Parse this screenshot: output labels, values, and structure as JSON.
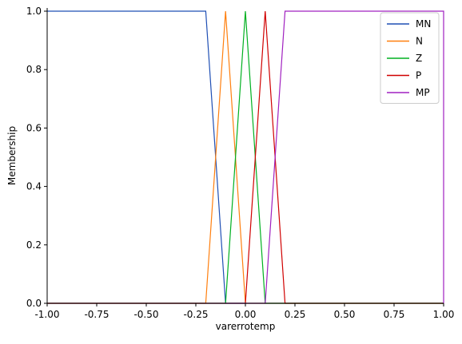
{
  "chart_data": {
    "type": "line",
    "title": "",
    "xlabel": "varerrotemp",
    "ylabel": "Membership",
    "xlim": [
      -1.0,
      1.0
    ],
    "ylim": [
      0.0,
      1.0
    ],
    "xticks": [
      "-1.00",
      "-0.75",
      "-0.50",
      "-0.25",
      "0.00",
      "0.25",
      "0.50",
      "0.75",
      "1.00"
    ],
    "yticks": [
      "0.0",
      "0.2",
      "0.4",
      "0.6",
      "0.8",
      "1.0"
    ],
    "grid": false,
    "legend_position": "top-right",
    "series": [
      {
        "name": "MN",
        "color": "#1f4fb4",
        "x": [
          -1.0,
          -0.2,
          -0.1,
          1.0
        ],
        "y": [
          1,
          1,
          0,
          0
        ]
      },
      {
        "name": "N",
        "color": "#ff7f0e",
        "x": [
          -1.0,
          -0.2,
          -0.1,
          0.0,
          1.0
        ],
        "y": [
          0,
          0,
          1,
          0,
          0
        ]
      },
      {
        "name": "Z",
        "color": "#00b020",
        "x": [
          -1.0,
          -0.1,
          0.0,
          0.1,
          1.0
        ],
        "y": [
          0,
          0,
          1,
          0,
          0
        ]
      },
      {
        "name": "P",
        "color": "#d00000",
        "x": [
          -1.0,
          0.0,
          0.1,
          0.2,
          1.0
        ],
        "y": [
          0,
          0,
          1,
          0,
          0
        ]
      },
      {
        "name": "MP",
        "color": "#a020c0",
        "x": [
          -1.0,
          0.1,
          0.2,
          1.0,
          1.0
        ],
        "y": [
          0,
          0,
          1,
          1,
          0
        ]
      }
    ]
  }
}
